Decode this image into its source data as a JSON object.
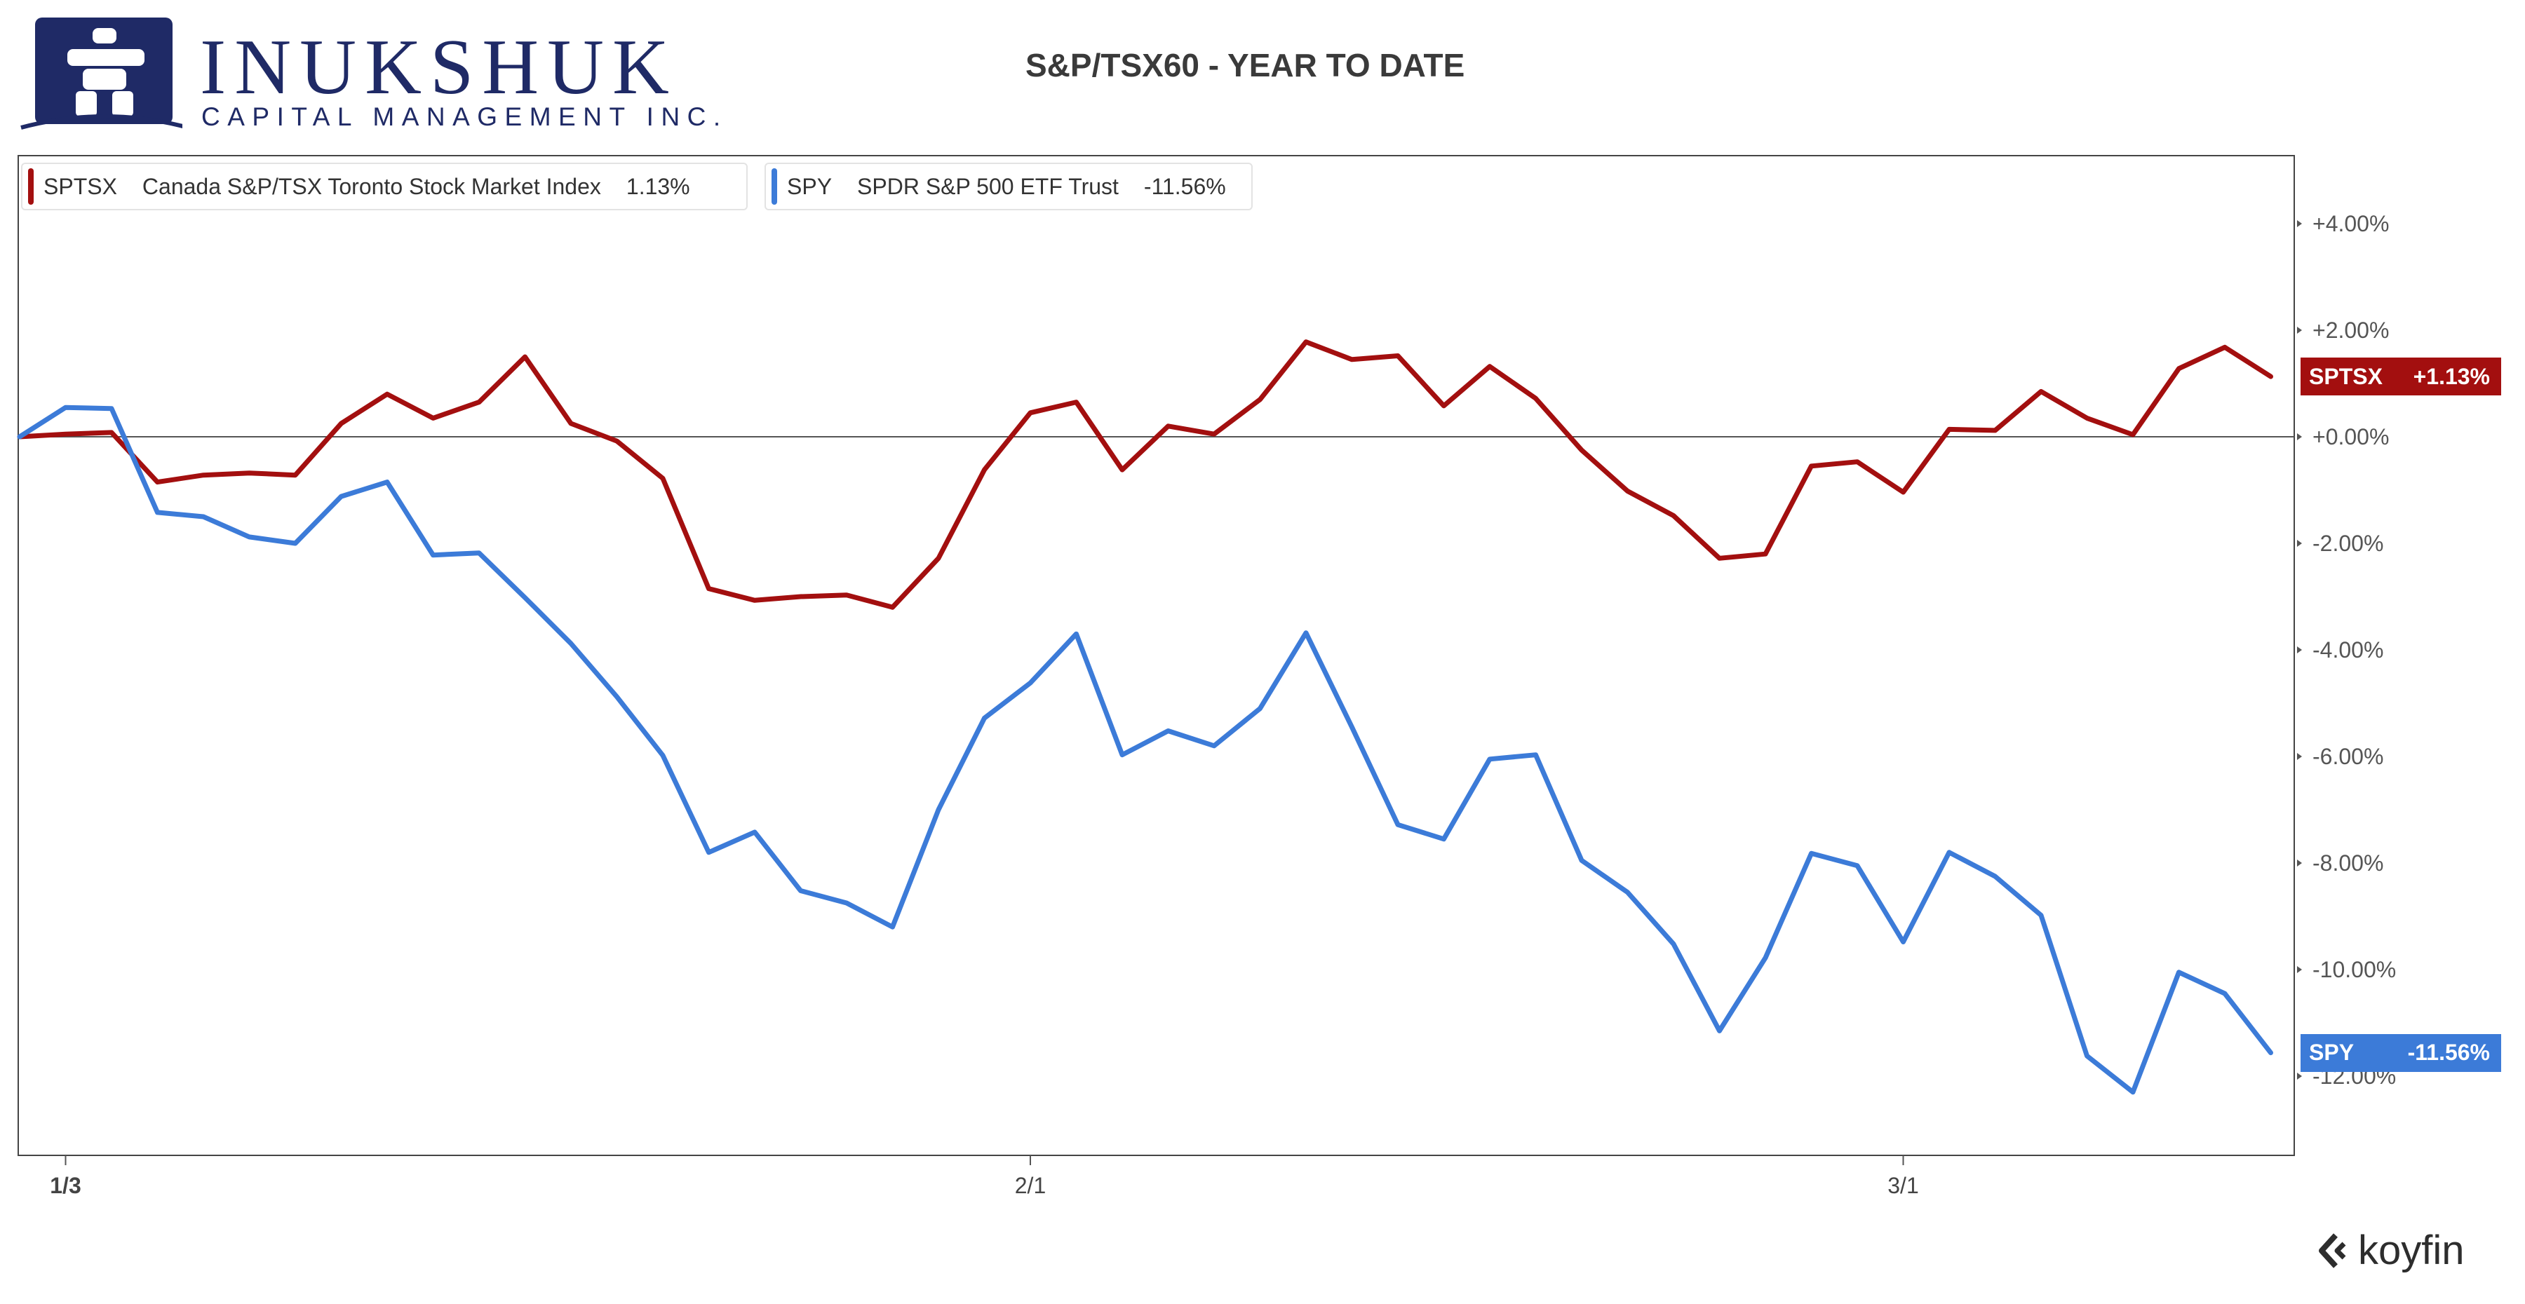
{
  "logo": {
    "name": "INUKSHUK",
    "subtitle": "CAPITAL MANAGEMENT INC."
  },
  "title": "S&P/TSX60 - YEAR TO DATE",
  "brand": "koyfin",
  "legend": [
    {
      "ticker": "SPTSX",
      "name": "Canada S&P/TSX Toronto Stock Market Index",
      "value": "1.13%",
      "color": "#a30f0f"
    },
    {
      "ticker": "SPY",
      "name": "SPDR S&P 500 ETF Trust",
      "value": "-11.56%",
      "color": "#3c7bd8"
    }
  ],
  "end_labels": [
    {
      "ticker": "SPTSX",
      "value": "+1.13%",
      "color": "#a30f0f"
    },
    {
      "ticker": "SPY",
      "value": "-11.56%",
      "color": "#3c7bd8"
    }
  ],
  "chart_data": {
    "type": "line",
    "title": "S&P/TSX60 - YEAR TO DATE",
    "x_ticks": [
      "1/3",
      "2/1",
      "3/1"
    ],
    "x_tick_index": [
      1,
      22,
      41
    ],
    "y_ticks": [
      "+4.00%",
      "+2.00%",
      "+0.00%",
      "-2.00%",
      "-4.00%",
      "-6.00%",
      "-8.00%",
      "-10.00%",
      "-12.00%"
    ],
    "y_tick_values": [
      4,
      2,
      0,
      -2,
      -4,
      -6,
      -8,
      -10,
      -12
    ],
    "ylim": [
      -13.5,
      5
    ],
    "y_axis_side": "right",
    "grid": false,
    "zero_line": true,
    "legend_position": "top-left",
    "series": [
      {
        "name": "SPTSX",
        "color": "#a30f0f",
        "values": [
          0.0,
          0.05,
          0.08,
          -0.85,
          -0.72,
          -0.68,
          -0.72,
          0.25,
          0.8,
          0.35,
          0.65,
          1.5,
          0.25,
          -0.08,
          -0.78,
          -2.85,
          -3.07,
          -3.0,
          -2.97,
          -3.2,
          -2.28,
          -0.62,
          0.45,
          0.65,
          -0.62,
          0.2,
          0.05,
          0.7,
          1.78,
          1.45,
          1.52,
          0.58,
          1.32,
          0.72,
          -0.25,
          -1.02,
          -1.48,
          -2.28,
          -2.2,
          -0.55,
          -0.47,
          -1.04,
          0.14,
          0.12,
          0.85,
          0.35,
          0.04,
          1.28,
          1.68,
          1.13
        ]
      },
      {
        "name": "SPY",
        "color": "#3c7bd8",
        "values": [
          0.0,
          0.55,
          0.53,
          -1.42,
          -1.5,
          -1.88,
          -2.0,
          -1.12,
          -0.85,
          -2.22,
          -2.18,
          -3.02,
          -3.88,
          -4.88,
          -5.98,
          -7.8,
          -7.42,
          -8.52,
          -8.75,
          -9.2,
          -7.0,
          -5.28,
          -4.62,
          -3.7,
          -5.97,
          -5.52,
          -5.8,
          -5.1,
          -3.68,
          -5.45,
          -7.28,
          -7.55,
          -6.05,
          -5.97,
          -7.95,
          -8.55,
          -9.52,
          -11.15,
          -9.78,
          -7.82,
          -8.05,
          -9.48,
          -7.8,
          -8.25,
          -8.98,
          -11.62,
          -12.3,
          -10.05,
          -10.45,
          -11.56
        ]
      }
    ]
  }
}
